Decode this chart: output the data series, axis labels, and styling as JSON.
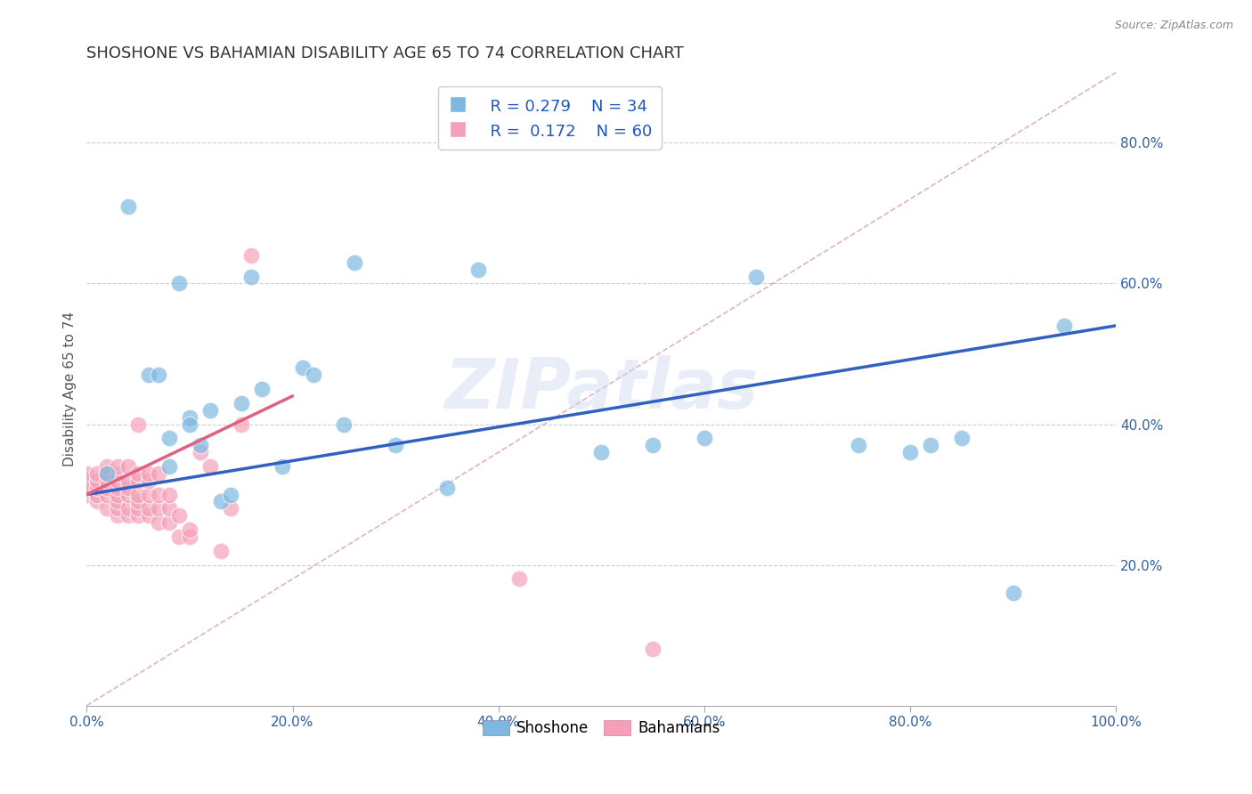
{
  "title": "SHOSHONE VS BAHAMIAN DISABILITY AGE 65 TO 74 CORRELATION CHART",
  "source_text": "Source: ZipAtlas.com",
  "ylabel": "Disability Age 65 to 74",
  "legend_r": [
    "R = 0.279",
    "R =  0.172"
  ],
  "legend_n": [
    "N = 34",
    "N = 60"
  ],
  "shoshone_color": "#7db8e0",
  "bahamian_color": "#f5a0b8",
  "shoshone_line_color": "#3060c0",
  "bahamian_line_color": "#e06080",
  "diagonal_color": "#d0a0a8",
  "xlim": [
    0.0,
    1.0
  ],
  "ylim": [
    0.0,
    0.9
  ],
  "xticks": [
    0.0,
    0.2,
    0.4,
    0.6,
    0.8,
    1.0
  ],
  "yticks": [
    0.2,
    0.4,
    0.6,
    0.8
  ],
  "xticklabels": [
    "0.0%",
    "20.0%",
    "40.0%",
    "60.0%",
    "80.0%",
    "100.0%"
  ],
  "yticklabels": [
    "20.0%",
    "40.0%",
    "60.0%",
    "80.0%"
  ],
  "watermark": "ZIPatlas",
  "shoshone_x": [
    0.02,
    0.04,
    0.06,
    0.07,
    0.08,
    0.08,
    0.09,
    0.1,
    0.1,
    0.11,
    0.12,
    0.13,
    0.14,
    0.15,
    0.16,
    0.17,
    0.19,
    0.21,
    0.22,
    0.25,
    0.26,
    0.3,
    0.35,
    0.38,
    0.5,
    0.55,
    0.6,
    0.65,
    0.75,
    0.8,
    0.82,
    0.85,
    0.9,
    0.95
  ],
  "shoshone_y": [
    0.33,
    0.71,
    0.47,
    0.47,
    0.34,
    0.38,
    0.6,
    0.41,
    0.4,
    0.37,
    0.42,
    0.29,
    0.3,
    0.43,
    0.61,
    0.45,
    0.34,
    0.48,
    0.47,
    0.4,
    0.63,
    0.37,
    0.31,
    0.62,
    0.36,
    0.37,
    0.38,
    0.61,
    0.37,
    0.36,
    0.37,
    0.38,
    0.16,
    0.54
  ],
  "bahamian_x": [
    0.0,
    0.0,
    0.0,
    0.0,
    0.01,
    0.01,
    0.01,
    0.01,
    0.01,
    0.02,
    0.02,
    0.02,
    0.02,
    0.02,
    0.02,
    0.03,
    0.03,
    0.03,
    0.03,
    0.03,
    0.03,
    0.03,
    0.03,
    0.04,
    0.04,
    0.04,
    0.04,
    0.04,
    0.04,
    0.05,
    0.05,
    0.05,
    0.05,
    0.05,
    0.05,
    0.05,
    0.06,
    0.06,
    0.06,
    0.06,
    0.06,
    0.07,
    0.07,
    0.07,
    0.07,
    0.08,
    0.08,
    0.08,
    0.09,
    0.09,
    0.1,
    0.1,
    0.11,
    0.12,
    0.13,
    0.14,
    0.15,
    0.16,
    0.42,
    0.55
  ],
  "bahamian_y": [
    0.3,
    0.32,
    0.31,
    0.33,
    0.29,
    0.3,
    0.31,
    0.32,
    0.33,
    0.28,
    0.3,
    0.31,
    0.32,
    0.33,
    0.34,
    0.27,
    0.28,
    0.29,
    0.3,
    0.31,
    0.32,
    0.33,
    0.34,
    0.27,
    0.28,
    0.3,
    0.31,
    0.32,
    0.34,
    0.27,
    0.28,
    0.29,
    0.3,
    0.32,
    0.33,
    0.4,
    0.27,
    0.28,
    0.3,
    0.32,
    0.33,
    0.26,
    0.28,
    0.3,
    0.33,
    0.26,
    0.28,
    0.3,
    0.24,
    0.27,
    0.24,
    0.25,
    0.36,
    0.34,
    0.22,
    0.28,
    0.4,
    0.64,
    0.18,
    0.08
  ],
  "shoshone_trendline": [
    0.3,
    0.54
  ],
  "bahamian_trendline_x": [
    0.0,
    0.2
  ],
  "bahamian_trendline_y": [
    0.3,
    0.44
  ]
}
